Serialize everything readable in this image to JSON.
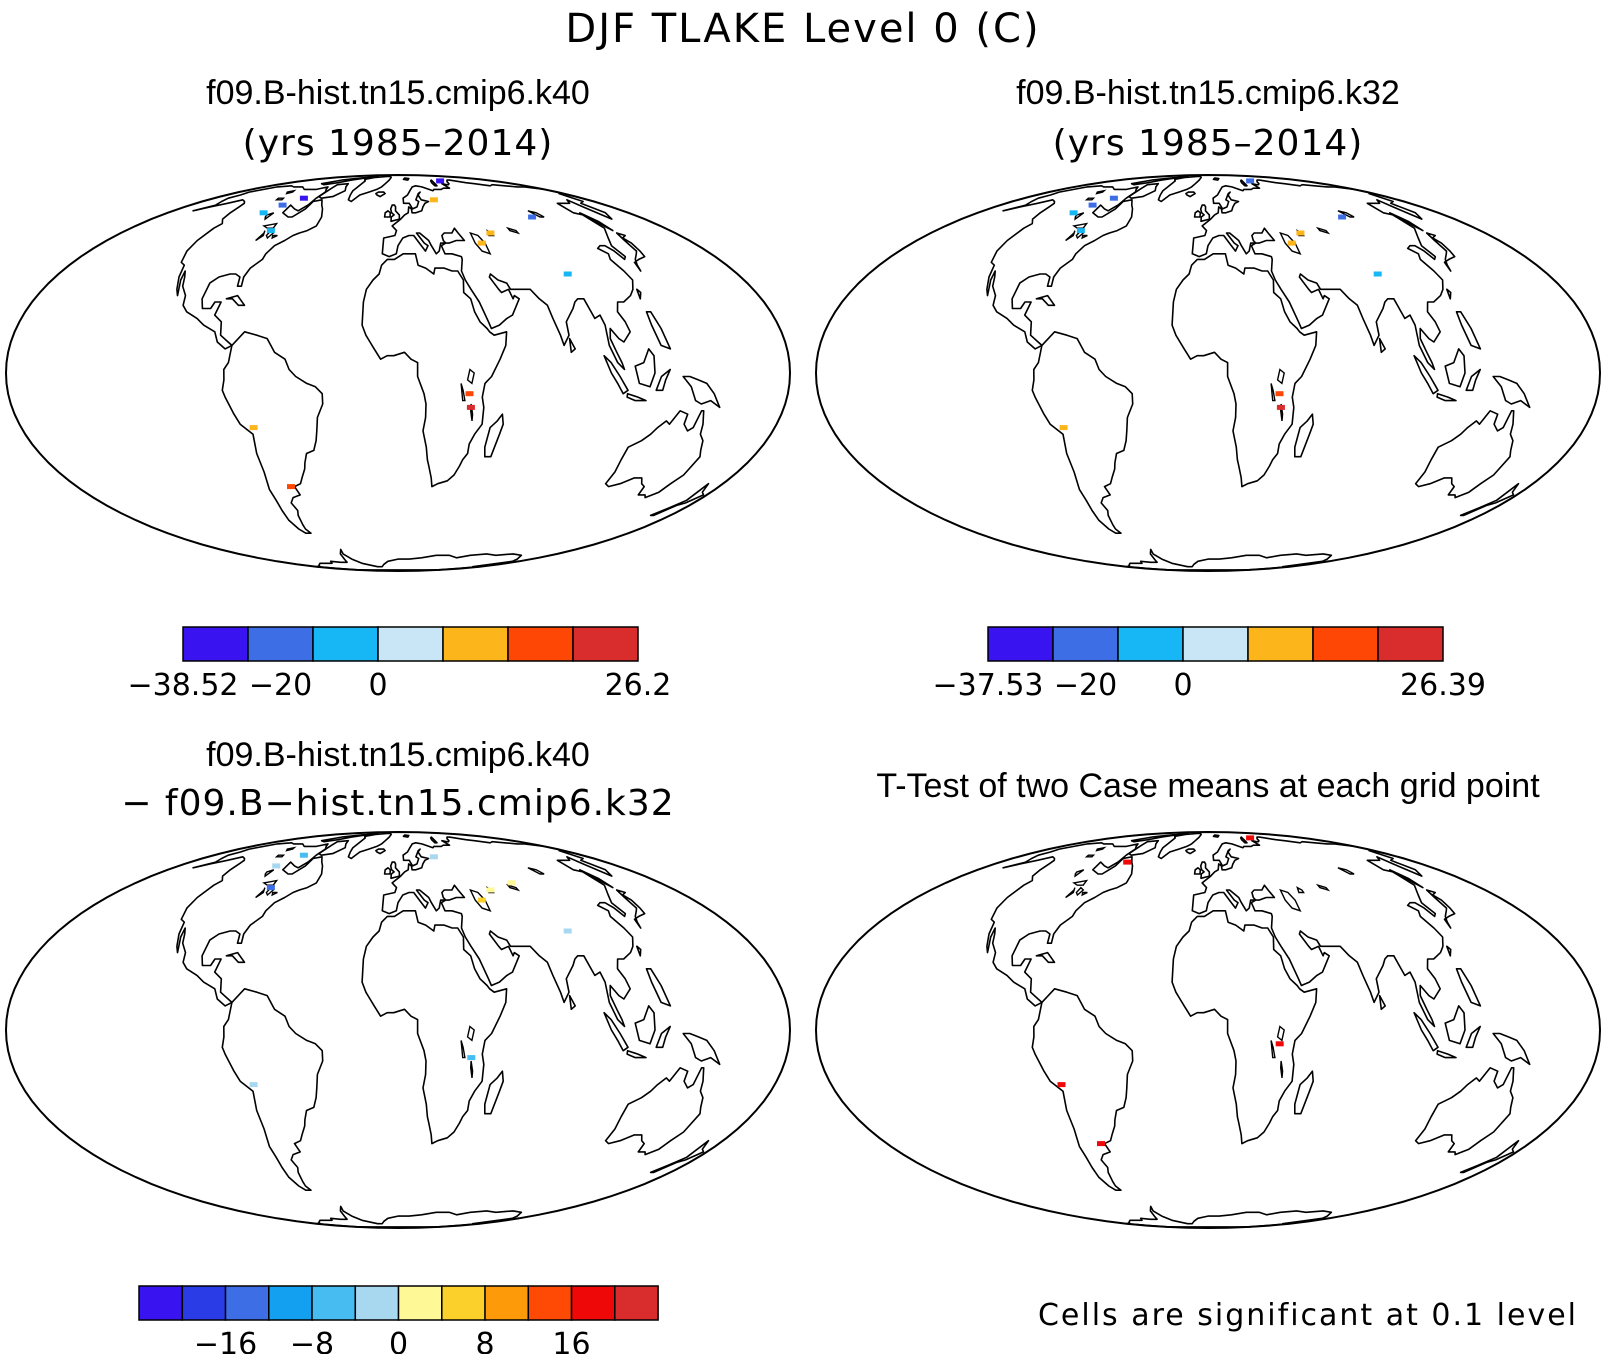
{
  "figure_title": "DJF TLAKE Level 0 (C)",
  "panels": [
    {
      "id": "k40",
      "title_line1": "f09.B-hist.tn15.cmip6.k40",
      "title_line2": "(yrs 1985–2014)",
      "colorbar": {
        "colors": [
          "#3a14f0",
          "#3e6ee6",
          "#17b6f4",
          "#c8e6f5",
          "#fcb51a",
          "#ff4705",
          "#d92c2c"
        ],
        "tick_labels": [
          "−38.52",
          "−20",
          "0",
          "26.2"
        ]
      },
      "markers": [
        {
          "lon": -92,
          "lat": 62,
          "color": "#3a14f0"
        },
        {
          "lon": -100,
          "lat": 58,
          "color": "#3e6ee6"
        },
        {
          "lon": -105,
          "lat": 54,
          "color": "#17b6f4"
        },
        {
          "lon": -84,
          "lat": 46,
          "color": "#17b6f4"
        },
        {
          "lon": 34,
          "lat": 61,
          "color": "#fcb51a"
        },
        {
          "lon": 51,
          "lat": 41,
          "color": "#fcb51a"
        },
        {
          "lon": 60,
          "lat": 45,
          "color": "#fcb51a"
        },
        {
          "lon": 100,
          "lat": 52,
          "color": "#3e6ee6"
        },
        {
          "lon": 90,
          "lat": 30,
          "color": "#17b6f4"
        },
        {
          "lon": 33,
          "lat": -6,
          "color": "#ff4705"
        },
        {
          "lon": 34,
          "lat": -10,
          "color": "#d92c2c"
        },
        {
          "lon": -69,
          "lat": -16,
          "color": "#fcb51a"
        },
        {
          "lon": -60,
          "lat": -35,
          "color": "#ff4705"
        },
        {
          "lon": 80,
          "lat": 76,
          "color": "#3a14f0"
        }
      ]
    },
    {
      "id": "k32",
      "title_line1": "f09.B-hist.tn15.cmip6.k32",
      "title_line2": "(yrs 1985–2014)",
      "colorbar": {
        "colors": [
          "#3a14f0",
          "#3e6ee6",
          "#17b6f4",
          "#c8e6f5",
          "#fcb51a",
          "#ff4705",
          "#d92c2c"
        ],
        "tick_labels": [
          "−37.53",
          "−20",
          "0",
          "26.39"
        ]
      },
      "markers": [
        {
          "lon": -92,
          "lat": 62,
          "color": "#3e6ee6"
        },
        {
          "lon": -100,
          "lat": 58,
          "color": "#3e6ee6"
        },
        {
          "lon": -105,
          "lat": 54,
          "color": "#17b6f4"
        },
        {
          "lon": -84,
          "lat": 46,
          "color": "#17b6f4"
        },
        {
          "lon": 51,
          "lat": 41,
          "color": "#fcb51a"
        },
        {
          "lon": 60,
          "lat": 45,
          "color": "#fcb51a"
        },
        {
          "lon": 100,
          "lat": 52,
          "color": "#3e6ee6"
        },
        {
          "lon": 90,
          "lat": 30,
          "color": "#17b6f4"
        },
        {
          "lon": 33,
          "lat": -6,
          "color": "#ff4705"
        },
        {
          "lon": 34,
          "lat": -10,
          "color": "#d92c2c"
        },
        {
          "lon": -69,
          "lat": -16,
          "color": "#fcb51a"
        },
        {
          "lon": 80,
          "lat": 76,
          "color": "#3e6ee6"
        }
      ]
    },
    {
      "id": "diff",
      "title_line1": "f09.B-hist.tn15.cmip6.k40",
      "title_line2": "− f09.B−hist.tn15.cmip6.k32",
      "colorbar": {
        "colors": [
          "#3a14f0",
          "#2a3ce6",
          "#3e6ee6",
          "#14a0f0",
          "#46bcf0",
          "#a8d8f0",
          "#fef896",
          "#fcd02a",
          "#fc9a0a",
          "#ff4a05",
          "#ee0808",
          "#d92c2c"
        ],
        "tick_labels": [
          "−16",
          "−8",
          "0",
          "8",
          "16"
        ]
      },
      "markers": [
        {
          "lon": -92,
          "lat": 62,
          "color": "#46bcf0"
        },
        {
          "lon": -100,
          "lat": 56,
          "color": "#a8d8f0"
        },
        {
          "lon": -84,
          "lat": 46,
          "color": "#3e6ee6"
        },
        {
          "lon": 34,
          "lat": 61,
          "color": "#a8d8f0"
        },
        {
          "lon": 51,
          "lat": 41,
          "color": "#fcd02a"
        },
        {
          "lon": 60,
          "lat": 45,
          "color": "#fef896"
        },
        {
          "lon": 78,
          "lat": 48,
          "color": "#fef896"
        },
        {
          "lon": 90,
          "lat": 30,
          "color": "#a8d8f0"
        },
        {
          "lon": 34,
          "lat": -8,
          "color": "#46bcf0"
        },
        {
          "lon": -69,
          "lat": -16,
          "color": "#a8d8f0"
        }
      ]
    },
    {
      "id": "ttest",
      "title_line1": "T-Test of two Case means at each grid point",
      "note": "Cells are significant at 0.1 level",
      "markers": [
        {
          "lon": 80,
          "lat": 76,
          "color": "#ee0808"
        },
        {
          "lon": -70,
          "lat": 58,
          "color": "#ee0808"
        },
        {
          "lon": 33,
          "lat": -4,
          "color": "#ee0808"
        },
        {
          "lon": -70,
          "lat": -16,
          "color": "#ee0808"
        },
        {
          "lon": -60,
          "lat": -35,
          "color": "#ee0808"
        }
      ]
    }
  ]
}
